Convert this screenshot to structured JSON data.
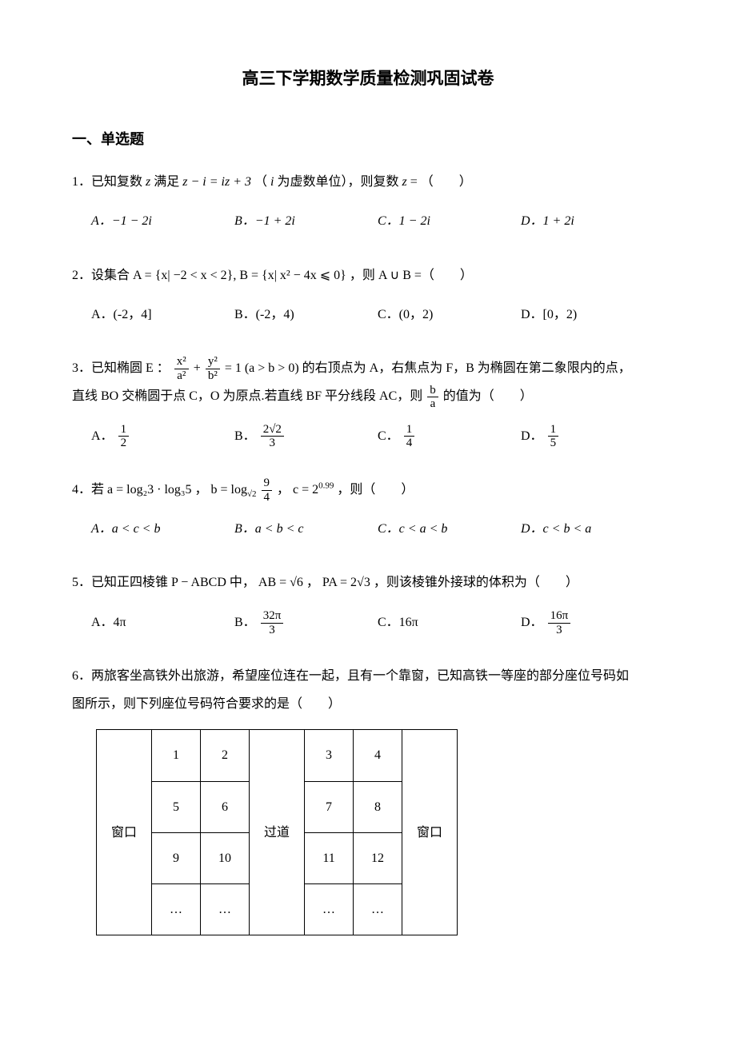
{
  "title": "高三下学期数学质量检测巩固试卷",
  "section1": "一、单选题",
  "q1": {
    "text_prefix": "1．已知复数",
    "text_mid1": "满足",
    "text_expr": "z − i = iz + 3",
    "text_paren": "（",
    "text_mid2": "为虚数单位），则复数",
    "text_eq": " = （　　）",
    "opts": {
      "A": "A．−1 − 2i",
      "B": "B．−1 + 2i",
      "C": "C．1 − 2i",
      "D": "D．1 + 2i"
    }
  },
  "q2": {
    "text": "2．设集合 A = {x| −2 < x < 2}, B = {x| x² − 4x ⩽ 0} ，则 A ∪ B =（　　）",
    "opts": {
      "A": "A．(-2，4]",
      "B": "B．(-2，4)",
      "C": "C．(0，2)",
      "D": "D．[0，2)"
    }
  },
  "q3": {
    "prefix": "3．已知椭圆 E ：",
    "frac1_num": "x²",
    "frac1_den": "a²",
    "plus": " + ",
    "frac2_num": "y²",
    "frac2_den": "b²",
    "eq": " = 1 (a > b > 0)",
    "after": " 的右顶点为 A，右焦点为 F，B 为椭圆在第二象限内的点，",
    "line2a": "直线 BO 交椭圆于点 C，O 为原点.若直线 BF 平分线段 AC，则 ",
    "frac3_num": "b",
    "frac3_den": "a",
    "line2b": " 的值为（　　）",
    "opts": {
      "A": "A．",
      "A_num": "1",
      "A_den": "2",
      "B": "B．",
      "B_num": "2√2",
      "B_den": "3",
      "C": "C．",
      "C_num": "1",
      "C_den": "4",
      "D": "D．",
      "D_num": "1",
      "D_den": "5"
    }
  },
  "q4": {
    "prefix": "4．若 a = log₂3 · log₃5 ， b = log",
    "sub": "√2",
    "mid": " ",
    "frac_num": "9",
    "frac_den": "4",
    "c": " ， c = 2",
    "sup": "0.99",
    "end": " ，则（　　）",
    "opts": {
      "A": "A．a < c < b",
      "B": "B．a < b < c",
      "C": "C．c < a < b",
      "D": "D．c < b < a"
    }
  },
  "q5": {
    "text": "5．已知正四棱锥 P − ABCD 中， AB = √6 ， PA = 2√3 ，则该棱锥外接球的体积为（　　）",
    "opts": {
      "A": "A．4π",
      "B": "B．",
      "B_num": "32π",
      "B_den": "3",
      "C": "C．16π",
      "D": "D．",
      "D_num": "16π",
      "D_den": "3"
    }
  },
  "q6": {
    "line1": "6．两旅客坐高铁外出旅游，希望座位连在一起，且有一个靠窗，已知高铁一等座的部分座位号码如",
    "line2": "图所示，则下列座位号码符合要求的是（　　）",
    "table": {
      "window": "窗口",
      "aisle": "过道",
      "r1": [
        "1",
        "2",
        "3",
        "4"
      ],
      "r2": [
        "5",
        "6",
        "7",
        "8"
      ],
      "r3": [
        "9",
        "10",
        "11",
        "12"
      ],
      "r4": [
        "…",
        "…",
        "…",
        "…"
      ]
    }
  },
  "colors": {
    "text": "#000000",
    "bg": "#ffffff",
    "border": "#000000"
  }
}
